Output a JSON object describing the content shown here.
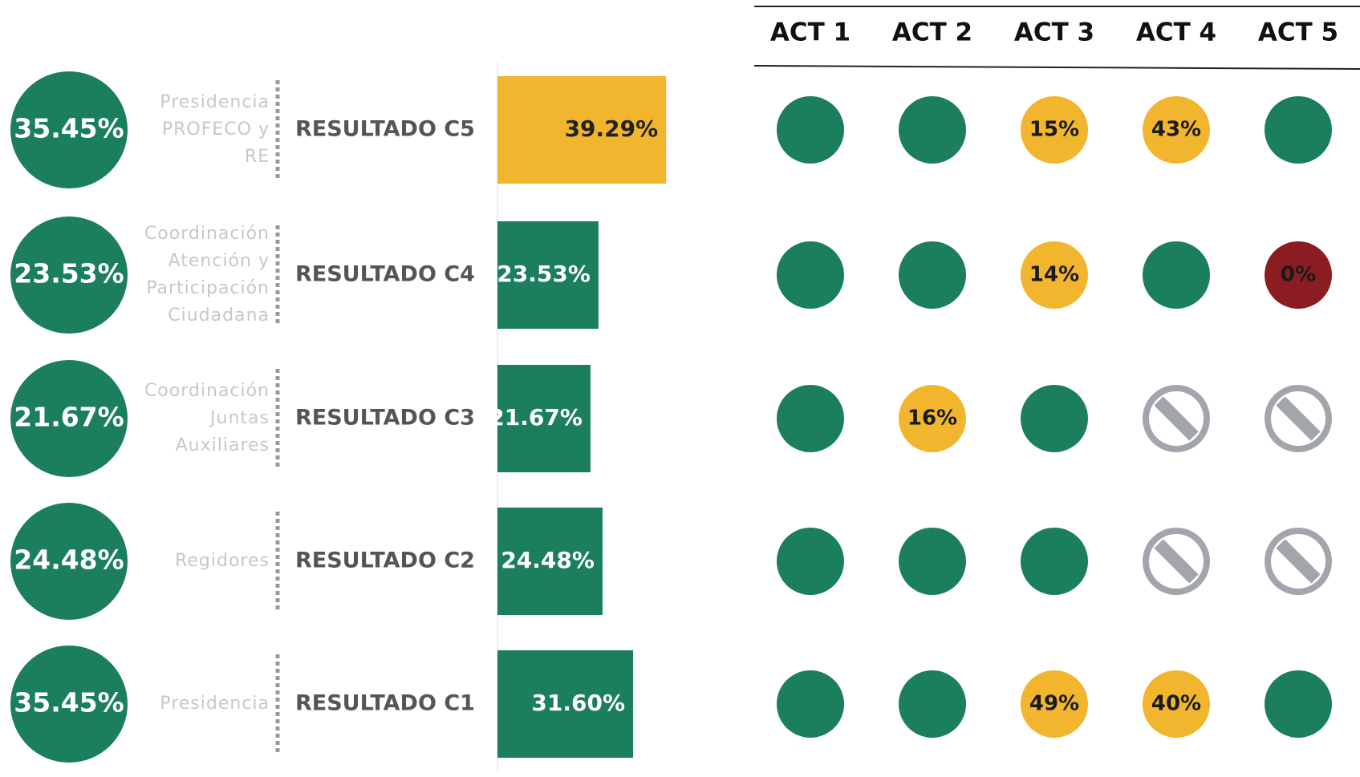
{
  "header": {
    "columns": [
      "ACT 1",
      "ACT 2",
      "ACT 3",
      "ACT 4",
      "ACT 5"
    ]
  },
  "rows": [
    {
      "total": "35.45%",
      "area": [
        "Presidencia",
        "PROFECO y",
        "RE"
      ],
      "result": "RESULTADO C5",
      "bar": "39.29%",
      "bar_color": "#f1b52e",
      "acts": [
        {
          "color": "#1a7f5a"
        },
        {
          "color": "#1a7f5a"
        },
        {
          "color": "#f1b52e",
          "label": "15%"
        },
        {
          "color": "#f1b52e",
          "label": "43%"
        },
        {
          "color": "#1a7f5a"
        }
      ]
    },
    {
      "total": "23.53%",
      "area": [
        "Coordinación",
        "Atención y",
        "Participación",
        "Ciudadana"
      ],
      "result": "RESULTADO C4",
      "bar": "23.53%",
      "bar_color": "#1a7f5a",
      "acts": [
        {
          "color": "#1a7f5a"
        },
        {
          "color": "#1a7f5a"
        },
        {
          "color": "#f1b52e",
          "label": "14%"
        },
        {
          "color": "#1a7f5a"
        },
        {
          "color": "#8b1d22",
          "label": "0%"
        }
      ]
    },
    {
      "total": "21.67%",
      "area": [
        "Coordinación",
        "Juntas",
        "Auxiliares"
      ],
      "result": "RESULTADO C3",
      "bar": "21.67%",
      "bar_color": "#1a7f5a",
      "acts": [
        {
          "color": "#1a7f5a"
        },
        {
          "color": "#f1b52e",
          "label": "16%"
        },
        {
          "color": "#1a7f5a"
        },
        {
          "color": "#a3a5ad",
          "disabled": true
        },
        {
          "color": "#a3a5ad",
          "disabled": true
        }
      ]
    },
    {
      "total": "24.48%",
      "area": [
        "Regidores"
      ],
      "result": "RESULTADO C2",
      "bar": "24.48%",
      "bar_color": "#1a7f5a",
      "acts": [
        {
          "color": "#1a7f5a"
        },
        {
          "color": "#1a7f5a"
        },
        {
          "color": "#1a7f5a"
        },
        {
          "color": "#a3a5ad",
          "disabled": true
        },
        {
          "color": "#a3a5ad",
          "disabled": true
        }
      ]
    },
    {
      "total": "35.45%",
      "area": [
        "Presidencia"
      ],
      "result": "RESULTADO C1",
      "bar": "31.60%",
      "bar_color": "#1a7f5a",
      "acts": [
        {
          "color": "#1a7f5a"
        },
        {
          "color": "#1a7f5a"
        },
        {
          "color": "#f1b52e",
          "label": "49%"
        },
        {
          "color": "#f1b52e",
          "label": "40%"
        },
        {
          "color": "#1a7f5a"
        }
      ]
    }
  ]
}
